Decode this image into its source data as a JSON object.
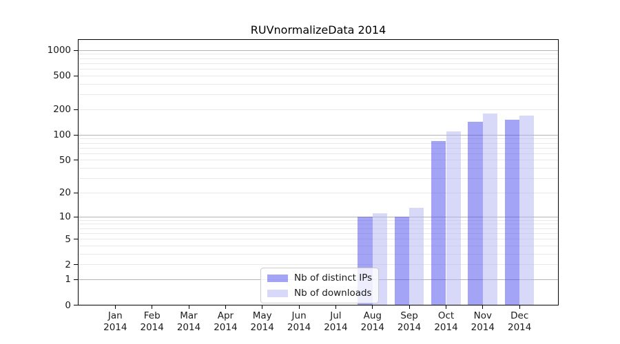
{
  "figure": {
    "title": "RUVnormalizeData 2014"
  },
  "chart_data": {
    "type": "bar",
    "title": "RUVnormalizeData 2014",
    "categories": [
      "Jan",
      "Feb",
      "Mar",
      "Apr",
      "May",
      "Jun",
      "Jul",
      "Aug",
      "Sep",
      "Oct",
      "Nov",
      "Dec"
    ],
    "x_year": "2014",
    "series": [
      {
        "name": "Nb of distinct IPs",
        "color": "rgba(73,73,237,0.5)",
        "values": [
          0,
          0,
          0,
          0,
          0,
          0,
          0,
          10,
          10,
          84,
          143,
          151
        ]
      },
      {
        "name": "Nb of downloads",
        "color": "rgba(177,177,243,0.5)",
        "values": [
          0,
          0,
          0,
          0,
          0,
          0,
          0,
          11,
          13,
          110,
          179,
          168
        ]
      }
    ],
    "yscale": "log1p",
    "ylim": [
      0,
      1330
    ],
    "y_ticks": [
      0,
      1,
      2,
      5,
      10,
      20,
      50,
      100,
      200,
      500,
      1000
    ],
    "y_major_gridlines": [
      1,
      10,
      100,
      1000
    ],
    "grid": "both",
    "legend_position": "inside lower center-left",
    "legend_framealpha": 0.8,
    "colors": {
      "major_grid": "#b3b3b3",
      "minor_grid": "#e9e9e9",
      "axis": "#000000",
      "text": "#1a1a1a",
      "legend_border": "#cccccc"
    }
  }
}
